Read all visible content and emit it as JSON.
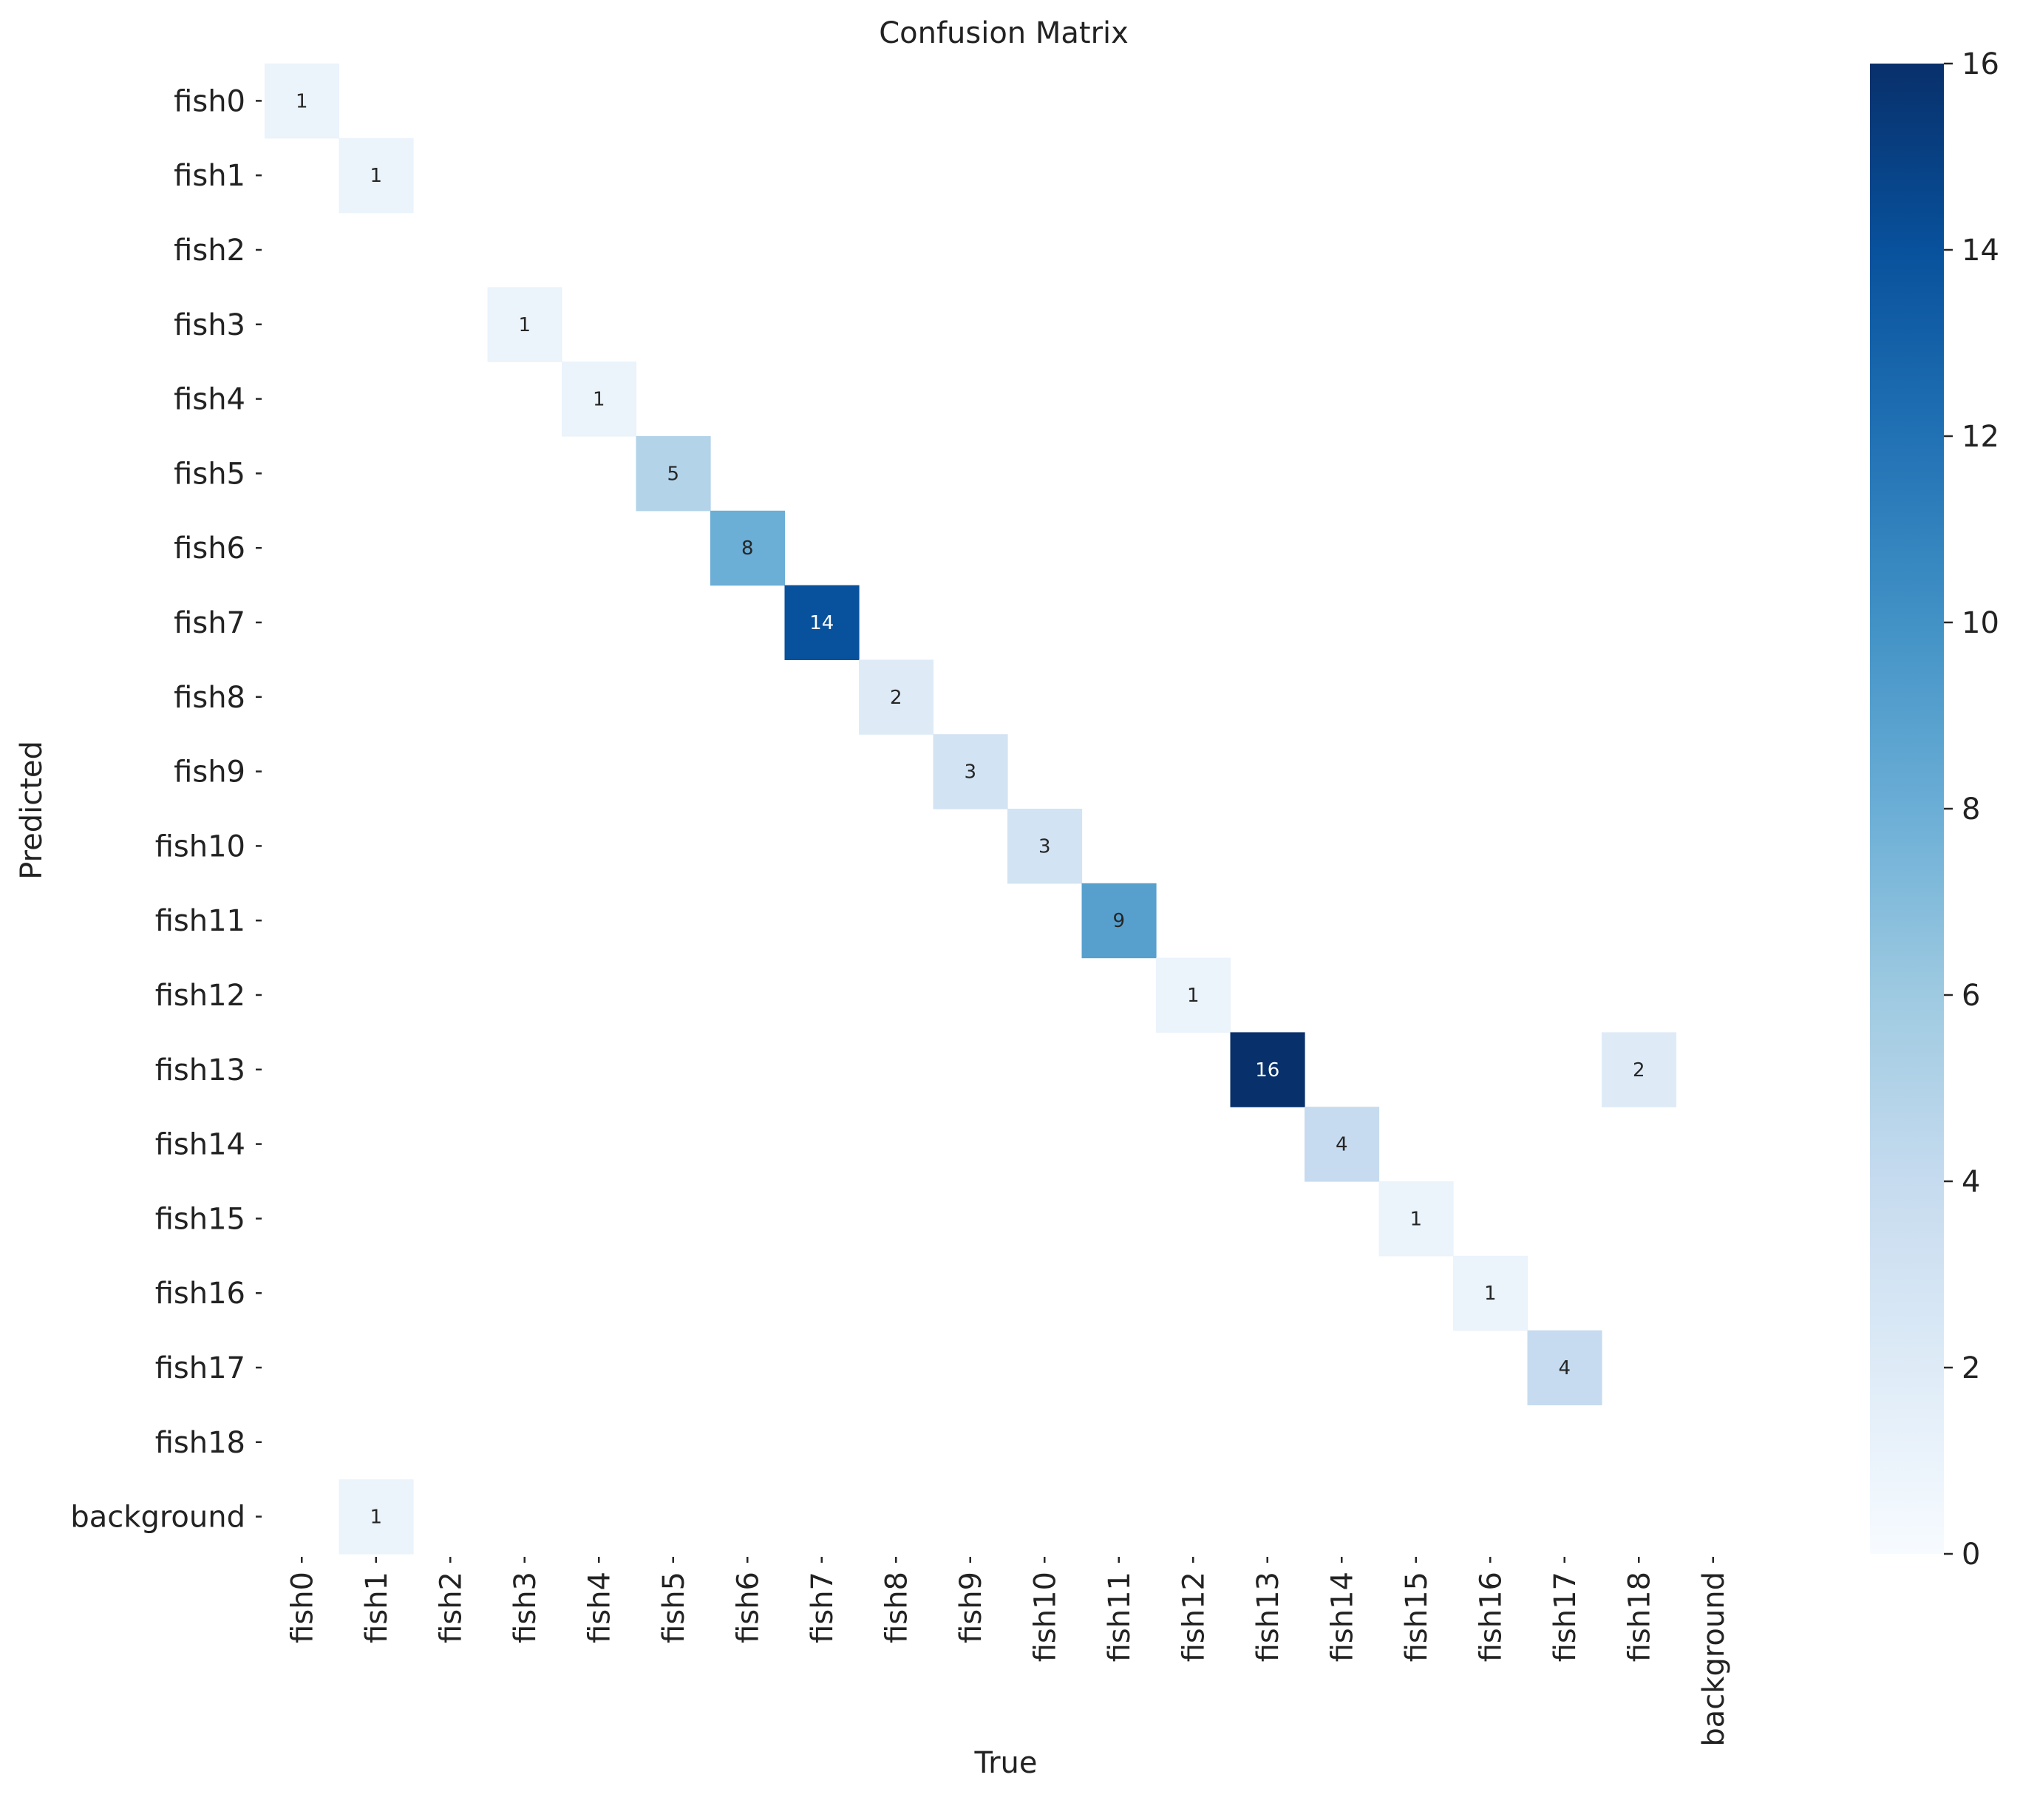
{
  "chart_data": {
    "type": "heatmap",
    "title": "Confusion Matrix",
    "xlabel": "True",
    "ylabel": "Predicted",
    "x_categories": [
      "fish0",
      "fish1",
      "fish2",
      "fish3",
      "fish4",
      "fish5",
      "fish6",
      "fish7",
      "fish8",
      "fish9",
      "fish10",
      "fish11",
      "fish12",
      "fish13",
      "fish14",
      "fish15",
      "fish16",
      "fish17",
      "fish18",
      "background"
    ],
    "y_categories": [
      "fish0",
      "fish1",
      "fish2",
      "fish3",
      "fish4",
      "fish5",
      "fish6",
      "fish7",
      "fish8",
      "fish9",
      "fish10",
      "fish11",
      "fish12",
      "fish13",
      "fish14",
      "fish15",
      "fish16",
      "fish17",
      "fish18",
      "background"
    ],
    "cells": [
      {
        "row": "fish0",
        "col": "fish0",
        "value": 1
      },
      {
        "row": "fish1",
        "col": "fish1",
        "value": 1
      },
      {
        "row": "fish3",
        "col": "fish3",
        "value": 1
      },
      {
        "row": "fish4",
        "col": "fish4",
        "value": 1
      },
      {
        "row": "fish5",
        "col": "fish5",
        "value": 5
      },
      {
        "row": "fish6",
        "col": "fish6",
        "value": 8
      },
      {
        "row": "fish7",
        "col": "fish7",
        "value": 14
      },
      {
        "row": "fish8",
        "col": "fish8",
        "value": 2
      },
      {
        "row": "fish9",
        "col": "fish9",
        "value": 3
      },
      {
        "row": "fish10",
        "col": "fish10",
        "value": 3
      },
      {
        "row": "fish11",
        "col": "fish11",
        "value": 9
      },
      {
        "row": "fish12",
        "col": "fish12",
        "value": 1
      },
      {
        "row": "fish13",
        "col": "fish13",
        "value": 16
      },
      {
        "row": "fish13",
        "col": "fish18",
        "value": 2
      },
      {
        "row": "fish14",
        "col": "fish14",
        "value": 4
      },
      {
        "row": "fish15",
        "col": "fish15",
        "value": 1
      },
      {
        "row": "fish16",
        "col": "fish16",
        "value": 1
      },
      {
        "row": "fish17",
        "col": "fish17",
        "value": 4
      },
      {
        "row": "background",
        "col": "fish1",
        "value": 1
      }
    ],
    "colorbar": {
      "min": 0,
      "max": 16,
      "ticks": [
        0,
        2,
        4,
        6,
        8,
        10,
        12,
        14,
        16
      ],
      "colormap": "Blues",
      "colors": [
        "#f7fbff",
        "#deebf7",
        "#c6dbef",
        "#9ecae1",
        "#6baed6",
        "#4292c6",
        "#2171b5",
        "#08519c",
        "#08306b"
      ]
    },
    "grid": false
  }
}
